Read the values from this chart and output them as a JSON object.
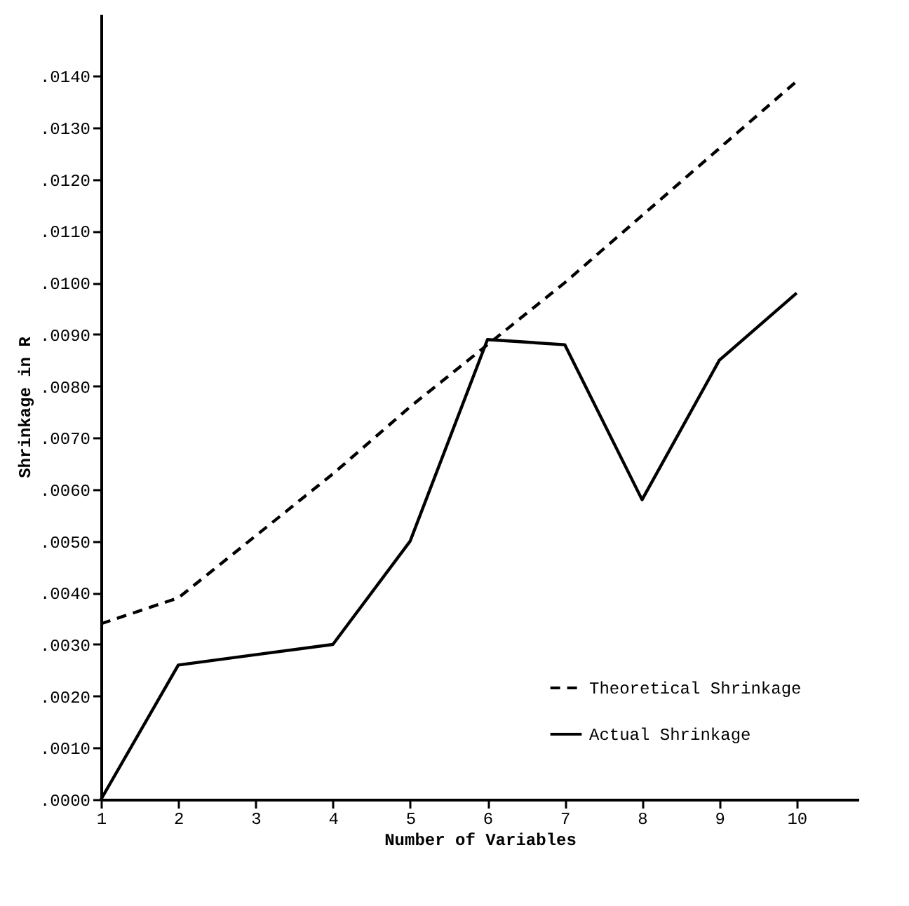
{
  "chart_data": {
    "type": "line",
    "xlabel": "Number of Variables",
    "ylabel": "Shrinkage in R",
    "x": [
      1,
      2,
      3,
      4,
      5,
      6,
      7,
      8,
      9,
      10
    ],
    "series": [
      {
        "name": "Theoretical Shrinkage",
        "color": "#000000",
        "line_style": "dashed",
        "values": [
          0.0034,
          0.0039,
          0.0051,
          0.0063,
          0.0076,
          0.0088,
          0.01,
          0.0113,
          0.0126,
          0.0139
        ]
      },
      {
        "name": "Actual      Shrinkage",
        "color": "#000000",
        "line_style": "solid",
        "values": [
          0.0,
          0.0026,
          0.0028,
          0.003,
          0.005,
          0.0089,
          0.0088,
          0.0058,
          0.0085,
          0.0098
        ]
      }
    ],
    "xlim": [
      1,
      10.8
    ],
    "xticks": [
      1,
      2,
      3,
      4,
      5,
      6,
      7,
      8,
      9,
      10
    ],
    "ylim": [
      0,
      0.0152
    ],
    "yticks": [
      {
        "value": 0,
        "label": ".0000"
      },
      {
        "value": 0.001,
        "label": ".0010"
      },
      {
        "value": 0.002,
        "label": ".0020"
      },
      {
        "value": 0.003,
        "label": ".0030"
      },
      {
        "value": 0.004,
        "label": ".0040"
      },
      {
        "value": 0.005,
        "label": ".0050"
      },
      {
        "value": 0.006,
        "label": ".0060"
      },
      {
        "value": 0.007,
        "label": ".0070"
      },
      {
        "value": 0.008,
        "label": ".0080"
      },
      {
        "value": 0.009,
        "label": ".0090"
      },
      {
        "value": 0.01,
        "label": ".0100"
      },
      {
        "value": 0.011,
        "label": ".0110"
      },
      {
        "value": 0.012,
        "label": ".0120"
      },
      {
        "value": 0.013,
        "label": ".0130"
      },
      {
        "value": 0.014,
        "label": ".0140"
      }
    ],
    "legend": "bottom right",
    "grid": false,
    "marker": "none"
  }
}
